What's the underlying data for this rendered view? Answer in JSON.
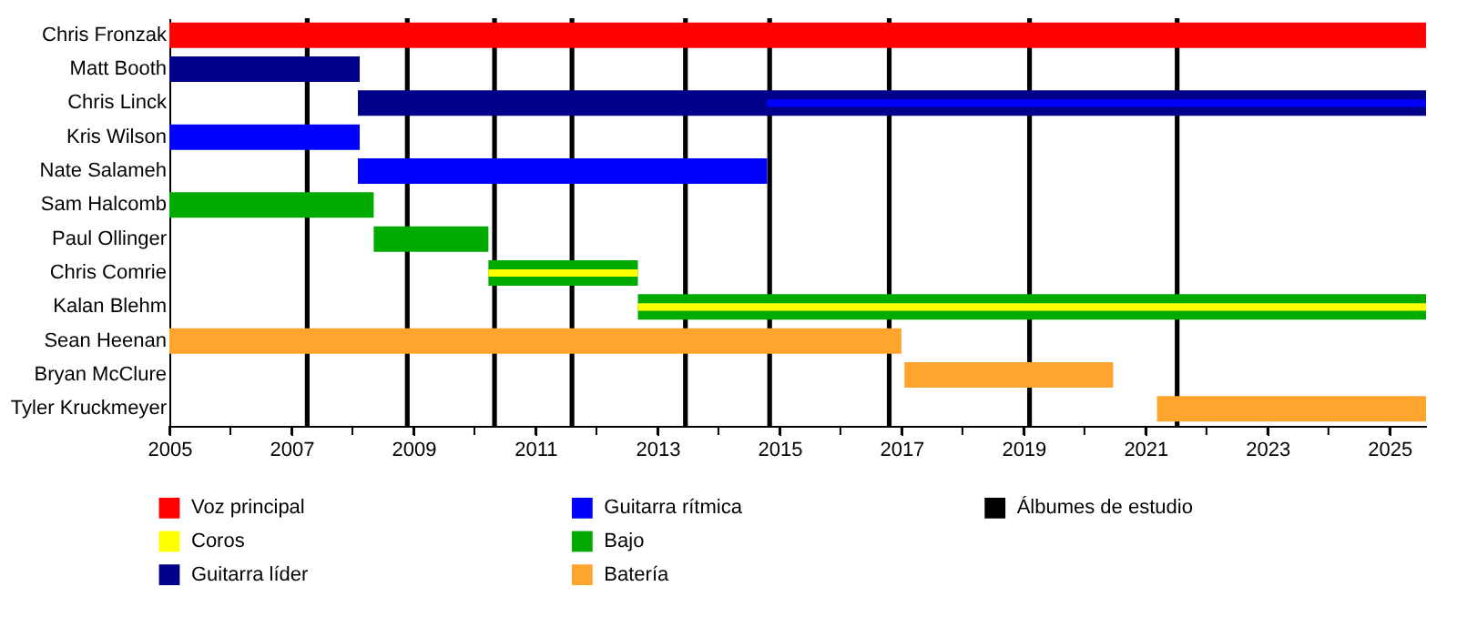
{
  "chart_data": {
    "type": "bar",
    "orientation": "horizontal",
    "categories": [
      "Chris Fronzak",
      "Matt Booth",
      "Chris Linck",
      "Kris Wilson",
      "Nate Salameh",
      "Sam Halcomb",
      "Paul Ollinger",
      "Chris Comrie",
      "Kalan Blehm",
      "Sean Heenan",
      "Bryan McClure",
      "Tyler Kruckmeyer"
    ],
    "series": [
      {
        "name": "Voz principal",
        "color": "#ff0000",
        "base": [
          2005,
          null,
          null,
          null,
          null,
          null,
          null,
          null,
          null,
          null,
          null,
          null
        ],
        "values": [
          20.6,
          null,
          null,
          null,
          null,
          null,
          null,
          null,
          null,
          null,
          null,
          null
        ]
      },
      {
        "name": "Coros",
        "color": "#ffff00",
        "base": [
          null,
          null,
          null,
          null,
          null,
          null,
          null,
          2010.23,
          2012.68,
          null,
          null,
          null
        ],
        "values": [
          null,
          null,
          null,
          null,
          null,
          null,
          null,
          2.45,
          12.92,
          null,
          null,
          null
        ]
      },
      {
        "name": "Guitarra líder",
        "color": "#00008b",
        "base": [
          null,
          2005,
          2008.09,
          null,
          null,
          null,
          null,
          null,
          null,
          null,
          null,
          null
        ],
        "values": [
          null,
          3.12,
          17.51,
          null,
          null,
          null,
          null,
          null,
          null,
          null,
          null,
          null
        ]
      },
      {
        "name": "Guitarra rítmica",
        "color": "#0000ff",
        "base": [
          null,
          null,
          2014.8,
          2005,
          2008.09,
          null,
          null,
          null,
          null,
          null,
          null,
          null
        ],
        "values": [
          null,
          null,
          10.8,
          3.12,
          6.71,
          null,
          null,
          null,
          null,
          null,
          null,
          null
        ]
      },
      {
        "name": "Bajo",
        "color": "#00aa00",
        "base": [
          null,
          null,
          null,
          null,
          null,
          2005,
          2008.35,
          2010.23,
          2012.68,
          null,
          null,
          null
        ],
        "values": [
          null,
          null,
          null,
          null,
          null,
          3.35,
          1.88,
          2.45,
          12.92,
          null,
          null,
          null
        ]
      },
      {
        "name": "Batería",
        "color": "#ffa42c",
        "base": [
          null,
          null,
          null,
          null,
          null,
          null,
          null,
          null,
          null,
          2005,
          2017.05,
          2021.19
        ],
        "values": [
          null,
          null,
          null,
          null,
          null,
          null,
          null,
          null,
          null,
          12.0,
          3.42,
          4.41
        ]
      }
    ],
    "xlim": [
      2005,
      2025.6
    ],
    "xticks": [
      2005,
      {
        "value": 2006,
        "label": null
      },
      2007,
      {
        "value": 2008,
        "label": null
      },
      2009,
      {
        "value": 2010,
        "label": null
      },
      2011,
      {
        "value": 2012,
        "label": null
      },
      2013,
      {
        "value": 2014,
        "label": null
      },
      2015,
      {
        "value": 2016,
        "label": null
      },
      2017,
      {
        "value": 2018,
        "label": null
      },
      2019,
      {
        "value": 2020,
        "label": null
      },
      2021,
      {
        "value": 2022,
        "label": null
      },
      2023,
      {
        "value": 2024,
        "label": null
      },
      2025
    ],
    "ref_lines": [
      {
        "axis": "x",
        "value": 2007.26,
        "label": "Álbumes de estudio",
        "color": "#000000"
      },
      {
        "axis": "x",
        "value": 2008.9,
        "color": "#000000"
      },
      {
        "axis": "x",
        "value": 2010.33,
        "color": "#000000"
      },
      {
        "axis": "x",
        "value": 2011.6,
        "color": "#000000"
      },
      {
        "axis": "x",
        "value": 2013.46,
        "color": "#000000"
      },
      {
        "axis": "x",
        "value": 2014.84,
        "color": "#000000"
      },
      {
        "axis": "x",
        "value": 2016.8,
        "color": "#000000"
      },
      {
        "axis": "x",
        "value": 2019.1,
        "color": "#000000"
      },
      {
        "axis": "x",
        "value": 2021.52,
        "color": "#000000"
      }
    ],
    "grid": false,
    "legend": "bottom"
  }
}
